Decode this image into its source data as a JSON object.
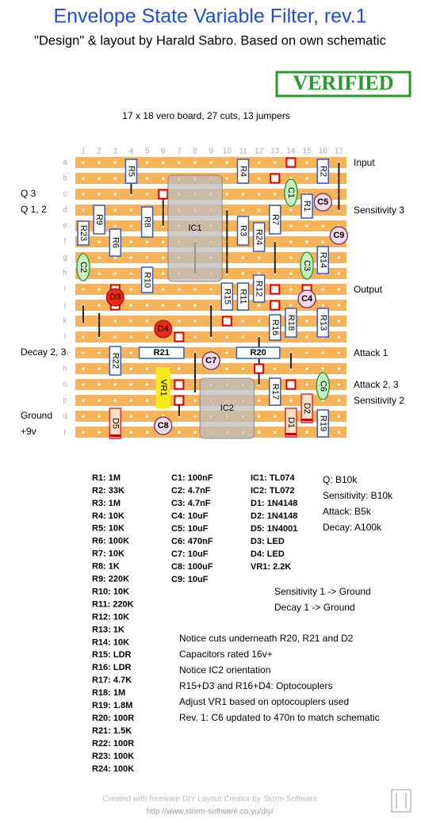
{
  "header": {
    "title": "Envelope State Variable Filter, rev.1",
    "subtitle": "\"Design\" & layout by Harald Sabro. Based on own schematic",
    "stamp": "VERIFIED",
    "board_info": "17 x 18 vero board, 27 cuts, 13 jumpers"
  },
  "board": {
    "columns": [
      1,
      2,
      3,
      4,
      5,
      6,
      7,
      8,
      9,
      10,
      11,
      12,
      13,
      14,
      15,
      16,
      17
    ],
    "rows": [
      "a",
      "b",
      "c",
      "d",
      "e",
      "f",
      "g",
      "h",
      "i",
      "j",
      "k",
      "l",
      "m",
      "n",
      "o",
      "p",
      "q",
      "r"
    ],
    "left_labels": [
      "Q 3",
      "Q 1, 2",
      "Decay 2, 3",
      "Ground",
      "+9v"
    ],
    "right_labels": [
      "Input",
      "Sensitivity 3",
      "Output",
      "Attack 1",
      "Attack 2, 3",
      "Sensitivity 2"
    ],
    "components": [
      "IC1",
      "IC2",
      "VR1",
      "R5",
      "R4",
      "R2",
      "R9",
      "R8",
      "R6",
      "R23",
      "R3",
      "R24",
      "R7",
      "R1",
      "R14",
      "R10",
      "R12",
      "R15",
      "R11",
      "R16",
      "R18",
      "R13",
      "R22",
      "R21",
      "R20",
      "R17",
      "R19",
      "D5",
      "D1",
      "D2",
      "D3",
      "D4",
      "C1",
      "C2",
      "C3",
      "C6",
      "C5",
      "C9",
      "C4",
      "C7",
      "C8"
    ]
  },
  "parts": {
    "resistors": [
      "R1: 1M",
      "R2: 33K",
      "R3: 1M",
      "R4: 10K",
      "R5: 10K",
      "R6: 100K",
      "R7: 10K",
      "R8: 1K",
      "R9: 220K",
      "R10: 10K",
      "R11: 220K",
      "R12: 10K",
      "R13: 1K",
      "R14: 10K",
      "R15: LDR",
      "R16: LDR",
      "R17: 4.7K",
      "R18: 1M",
      "R19: 1.8M",
      "R20: 100R",
      "R21: 1.5K",
      "R22: 100R",
      "R23: 100K",
      "R24: 100K"
    ],
    "capacitors": [
      "C1: 100nF",
      "C2: 4.7nF",
      "C3: 4.7nF",
      "C4: 10uF",
      "C5: 10uF",
      "C6: 470nF",
      "C7: 10uF",
      "C8: 100uF",
      "C9: 10uF"
    ],
    "semis": [
      "IC1: TL074",
      "IC2: TL072",
      "D1: 1N4148",
      "D2: 1N4148",
      "D5: 1N4001",
      "D3: LED",
      "D4: LED",
      "VR1: 2.2K"
    ],
    "pots": [
      "Q: B10k",
      "Sensitivity: B10k",
      "Attack: B5k",
      "Decay: A100k"
    ]
  },
  "notes": {
    "ground": [
      "Sensitivity 1 -> Ground",
      "Decay 1 -> Ground"
    ],
    "remarks": [
      "Notice cuts underneath R20, R21 and D2",
      "Capacitors rated 16v+",
      "Notice IC2 orientation",
      "R15+D3 and R16+D4: Optocouplers",
      "Adjust VR1 based on optocouplers used",
      "Rev. 1: C6 updated to 470n to match schematic"
    ]
  },
  "footer": {
    "credit": "Created with freeware DIY Layout Creator by Storm Software",
    "url": "http://www.storm-software.co.yu/diy/"
  }
}
